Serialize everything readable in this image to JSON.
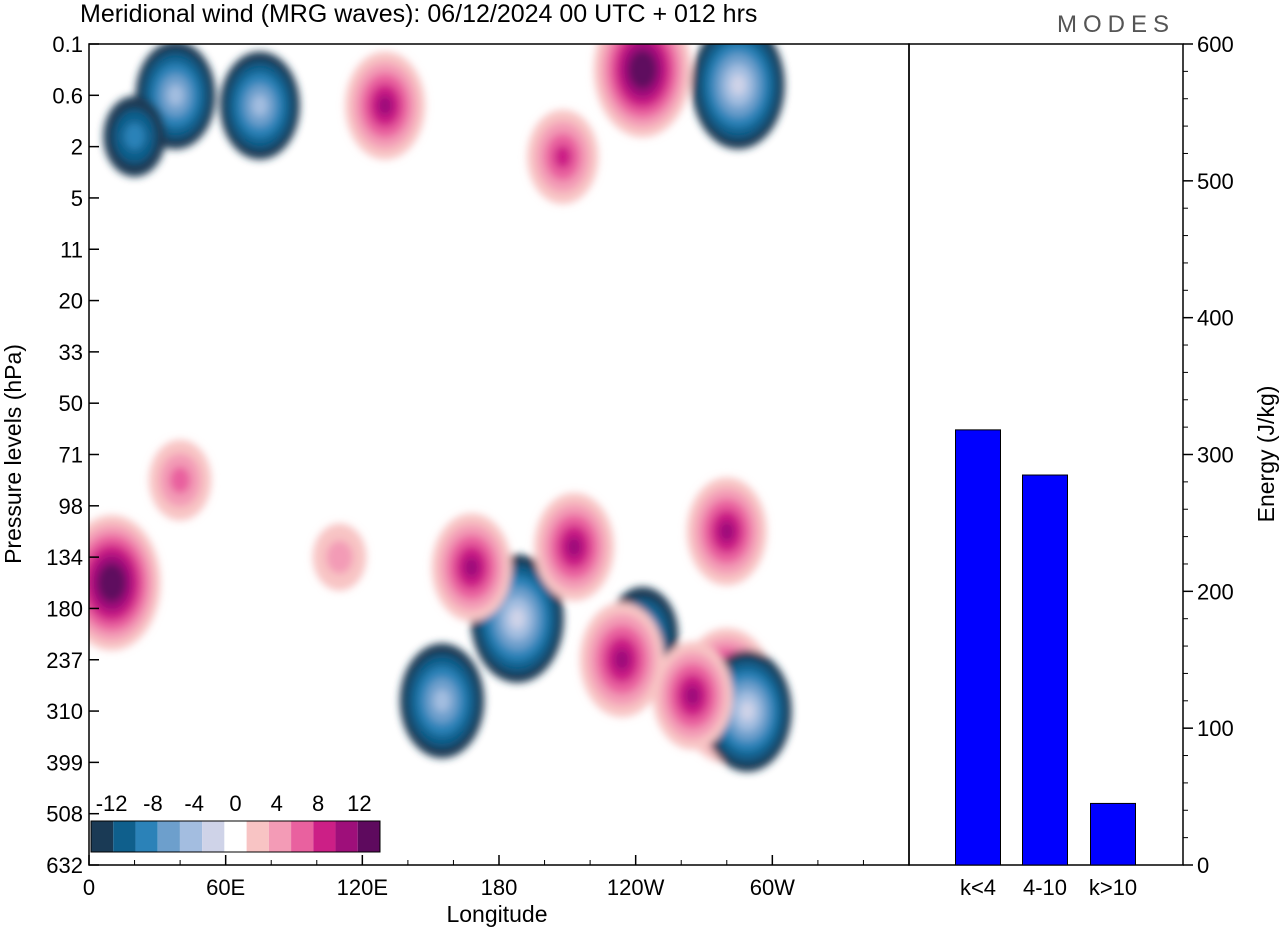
{
  "title": "Meridional wind (MRG waves):  06/12/2024  00 UTC  + 012 hrs",
  "logo": "MODES",
  "colors": {
    "neg": [
      "#1a3a55",
      "#0f5f8c",
      "#2b82b8",
      "#6d9fcc",
      "#a3bde0",
      "#cfd3e8"
    ],
    "pos": [
      "#f8c4c4",
      "#f39bb6",
      "#e9619f",
      "#cc1f86",
      "#9e0f7a",
      "#5e0a5e"
    ],
    "zero": "#ffffff",
    "bar": "#0000ff"
  },
  "chart_data": [
    {
      "type": "heatmap",
      "name": "meridional-wind-contour",
      "xlabel": "Longitude",
      "ylabel": "Pressure levels (hPa)",
      "x_ticks": [
        "0",
        "60E",
        "120E",
        "180",
        "120W",
        "60W"
      ],
      "y_ticks": [
        "0.1",
        "0.6",
        "2",
        "5",
        "11",
        "20",
        "33",
        "50",
        "71",
        "98",
        "134",
        "180",
        "237",
        "310",
        "399",
        "508",
        "632"
      ],
      "colorbar": {
        "labels": [
          "-12",
          "-8",
          "-4",
          "0",
          "4",
          "8",
          "12"
        ],
        "levels": [
          -14,
          -12,
          -10,
          -8,
          -6,
          -4,
          -2,
          2,
          4,
          6,
          8,
          10,
          12,
          14
        ]
      },
      "features": [
        {
          "lon": 75,
          "level": 1.2,
          "v": -10
        },
        {
          "lon": 38,
          "level": 1.0,
          "v": -10
        },
        {
          "lon": 130,
          "level": 1.2,
          "v": 10
        },
        {
          "lon": 243,
          "level": 0.5,
          "v": 14
        },
        {
          "lon": 285,
          "level": 0.8,
          "v": -13
        },
        {
          "lon": 208,
          "level": 2.2,
          "v": 8
        },
        {
          "lon": 20,
          "level": 1.8,
          "v": -6
        },
        {
          "lon": 10,
          "level": 10.5,
          "v": 14
        },
        {
          "lon": 188,
          "level": 11.2,
          "v": -13
        },
        {
          "lon": 168,
          "level": 10.2,
          "v": 10
        },
        {
          "lon": 213,
          "level": 9.8,
          "v": 10
        },
        {
          "lon": 155,
          "level": 12.8,
          "v": -11
        },
        {
          "lon": 243,
          "level": 11.5,
          "v": -8
        },
        {
          "lon": 234,
          "level": 12.0,
          "v": 11
        },
        {
          "lon": 280,
          "level": 12.7,
          "v": 14
        },
        {
          "lon": 289,
          "level": 13.0,
          "v": -12
        },
        {
          "lon": 265,
          "level": 12.7,
          "v": 10
        },
        {
          "lon": 110,
          "level": 10.0,
          "v": 4
        },
        {
          "lon": 40,
          "level": 8.5,
          "v": 6
        },
        {
          "lon": 280,
          "level": 9.5,
          "v": 10
        }
      ]
    },
    {
      "type": "bar",
      "name": "energy-bars",
      "categories": [
        "k<4",
        "4-10",
        "k>10"
      ],
      "values": [
        318,
        285,
        45
      ],
      "ylabel": "Energy (J/kg)",
      "ylim": [
        0,
        600
      ],
      "y_ticks": [
        "0",
        "100",
        "200",
        "300",
        "400",
        "500",
        "600"
      ]
    }
  ]
}
